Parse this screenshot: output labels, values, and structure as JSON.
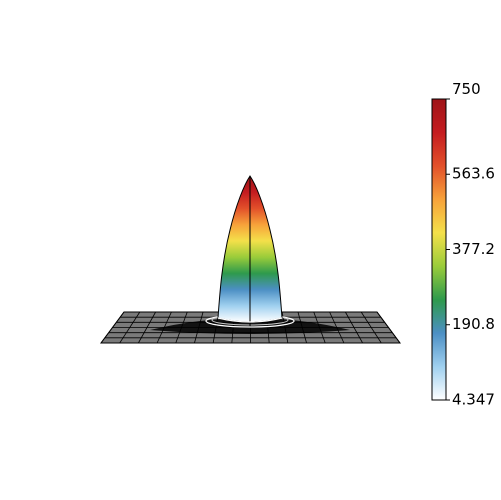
{
  "chart_data": {
    "type": "surface3d",
    "view": "side",
    "surface": "single sharp peak over a flat gridded base plane",
    "peak_value": 750,
    "base_value": 4.347,
    "colorbar": {
      "min": 4.347,
      "max": 750,
      "ticks": [
        750,
        563.6,
        377.2,
        190.8,
        4.347
      ],
      "tick_labels": [
        "750",
        "563.6",
        "377.2",
        "190.8",
        "4.347"
      ],
      "colormap": [
        "#ffffff",
        "#9fd0ef",
        "#4c8fc4",
        "#2e9a4c",
        "#9acc3a",
        "#f4e04a",
        "#f7a23a",
        "#e2502a",
        "#c41c20",
        "#9e1418"
      ],
      "placement": "right"
    },
    "grid": true,
    "base_plane_color": "#7a7a7a",
    "grid_line_color": "#000000"
  }
}
